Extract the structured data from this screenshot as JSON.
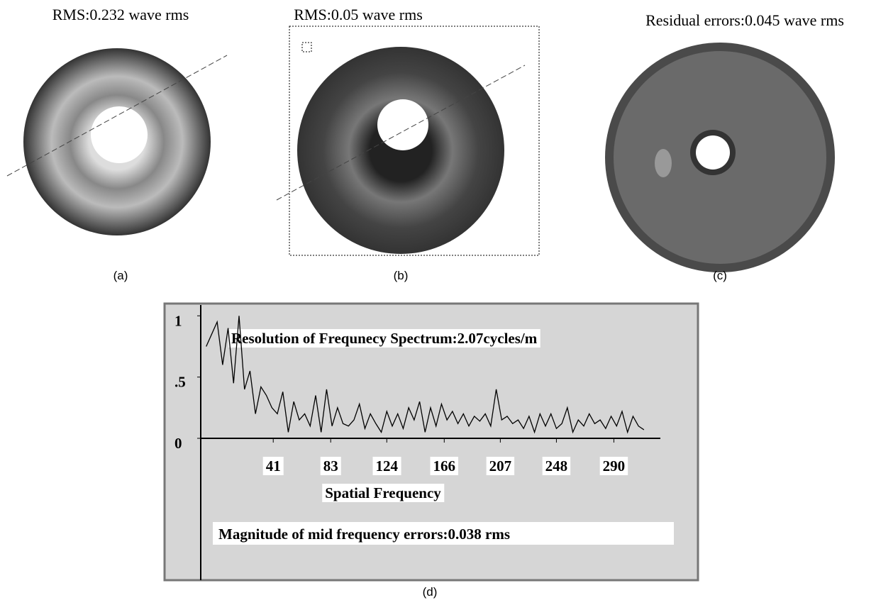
{
  "panels": [
    {
      "title": "RMS:0.232 wave rms",
      "caption": "(a)"
    },
    {
      "title": "RMS:0.05 wave rms",
      "caption": "(b)"
    },
    {
      "title": "Residual errors:0.045 wave rms",
      "caption": "(c)"
    }
  ],
  "chart_data": {
    "type": "line",
    "caption": "(d)",
    "annotations": [
      "Resolution of Frequnecy Spectrum:2.07cycles/m",
      "Magnitude of mid frequency errors:0.038 rms"
    ],
    "xlabel": "Spatial Frequency",
    "x": [
      -8,
      -4,
      0,
      4,
      8,
      12,
      16,
      20,
      24,
      28,
      32,
      36,
      40,
      44,
      48,
      52,
      56,
      60,
      64,
      68,
      72,
      76,
      80,
      84,
      88,
      92,
      96,
      100,
      104,
      108,
      112,
      116,
      120,
      124,
      128,
      132,
      136,
      140,
      144,
      148,
      152,
      156,
      160,
      164,
      168,
      172,
      176,
      180,
      184,
      188,
      192,
      196,
      200,
      204,
      208,
      212,
      216,
      220,
      224,
      228,
      232,
      236,
      240,
      244,
      248,
      252,
      256,
      260,
      264,
      268,
      272,
      276,
      280,
      284,
      288,
      292,
      296,
      300,
      304,
      308,
      312
    ],
    "values": [
      0.75,
      0.85,
      0.95,
      0.6,
      0.9,
      0.45,
      1.0,
      0.4,
      0.55,
      0.2,
      0.42,
      0.35,
      0.25,
      0.2,
      0.38,
      0.05,
      0.3,
      0.15,
      0.2,
      0.1,
      0.35,
      0.05,
      0.4,
      0.1,
      0.25,
      0.12,
      0.1,
      0.15,
      0.28,
      0.08,
      0.2,
      0.12,
      0.05,
      0.22,
      0.1,
      0.2,
      0.08,
      0.25,
      0.15,
      0.3,
      0.05,
      0.25,
      0.1,
      0.28,
      0.15,
      0.22,
      0.12,
      0.2,
      0.1,
      0.18,
      0.14,
      0.2,
      0.1,
      0.4,
      0.15,
      0.18,
      0.12,
      0.15,
      0.08,
      0.18,
      0.05,
      0.2,
      0.1,
      0.2,
      0.08,
      0.12,
      0.25,
      0.05,
      0.15,
      0.1,
      0.2,
      0.12,
      0.15,
      0.08,
      0.18,
      0.1,
      0.22,
      0.05,
      0.18,
      0.1,
      0.07
    ],
    "color": "#000000",
    "xlim": [
      -12,
      324
    ],
    "xticks": [
      41,
      83,
      124,
      166,
      207,
      248,
      290
    ],
    "ylim": [
      0,
      1.1
    ],
    "yticks": [
      0,
      {
        "value": 0.5,
        "label": ".5"
      },
      1
    ]
  }
}
